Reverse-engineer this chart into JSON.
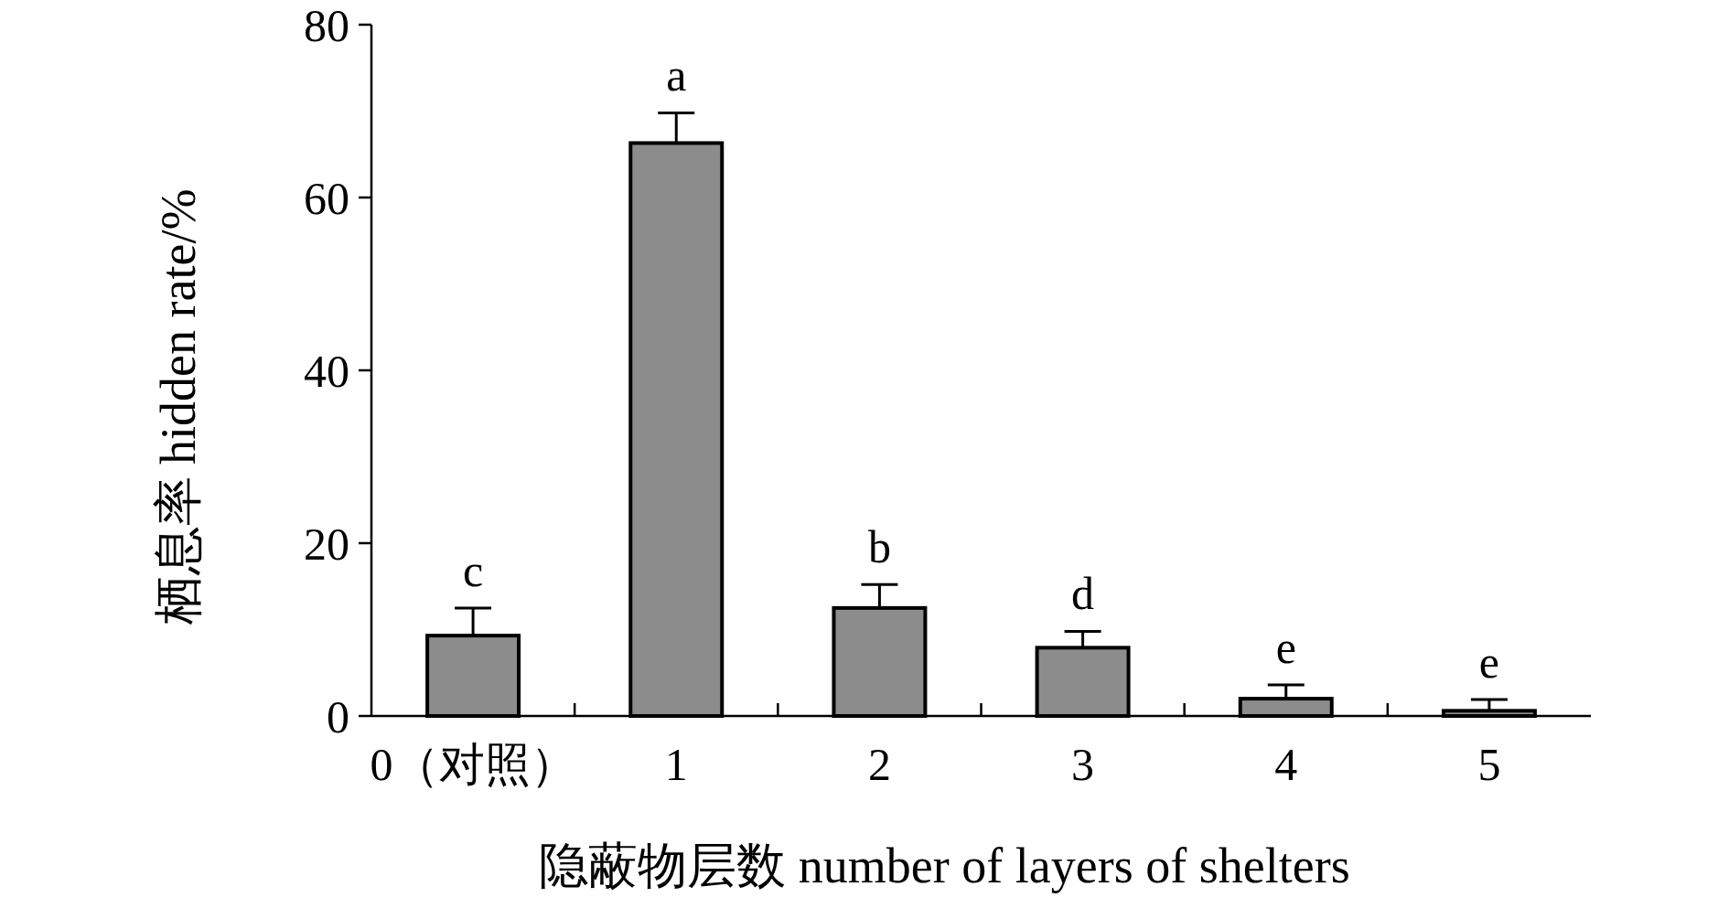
{
  "chart_data": {
    "type": "bar",
    "xlabel": "隐蔽物层数 number of layers of shelters",
    "ylabel": "栖息率 hidden rate/%",
    "categories": [
      "0（对照）",
      "1",
      "2",
      "3",
      "4",
      "5"
    ],
    "values": [
      9.3,
      66.3,
      12.5,
      7.9,
      2.0,
      0.6
    ],
    "errors": [
      3.2,
      3.5,
      2.7,
      1.9,
      1.6,
      1.3
    ],
    "color": "#8c8c8c",
    "ylim": [
      0,
      80
    ],
    "yticks": [
      0,
      20,
      40,
      60,
      80
    ],
    "grid": false,
    "annotations": [
      "c",
      "a",
      "b",
      "d",
      "e",
      "e"
    ]
  }
}
